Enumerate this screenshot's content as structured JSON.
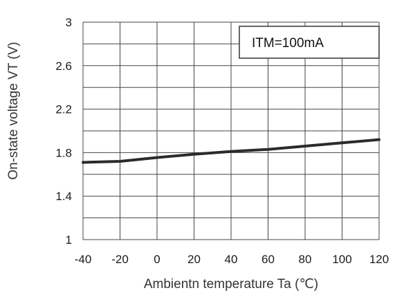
{
  "chart_data": {
    "type": "line",
    "title": "",
    "xlabel": "Ambientn temperature Ta (℃)",
    "ylabel": "On-state voltage VT (V)",
    "xlim": [
      -40,
      120
    ],
    "ylim": [
      1,
      3
    ],
    "x_ticks": [
      "-40",
      "-20",
      "0",
      "20",
      "40",
      "60",
      "80",
      "100",
      "120"
    ],
    "y_ticks": [
      "1",
      "1.4",
      "1.8",
      "2.2",
      "2.6",
      "3"
    ],
    "x_tick_values": [
      -40,
      -20,
      0,
      20,
      40,
      60,
      80,
      100,
      120
    ],
    "y_tick_values": [
      1,
      1.4,
      1.8,
      2.2,
      2.6,
      3
    ],
    "grid": true,
    "annotation": "ITM=100mA",
    "series": [
      {
        "color": "#2b2b2b",
        "x": [
          -40,
          -20,
          0,
          20,
          40,
          60,
          80,
          100,
          120
        ],
        "y": [
          1.71,
          1.72,
          1.755,
          1.785,
          1.81,
          1.83,
          1.86,
          1.89,
          1.92
        ]
      }
    ]
  },
  "colors": {
    "grid": "#444444",
    "line": "#2b2b2b",
    "text": "#1a1a1a"
  }
}
